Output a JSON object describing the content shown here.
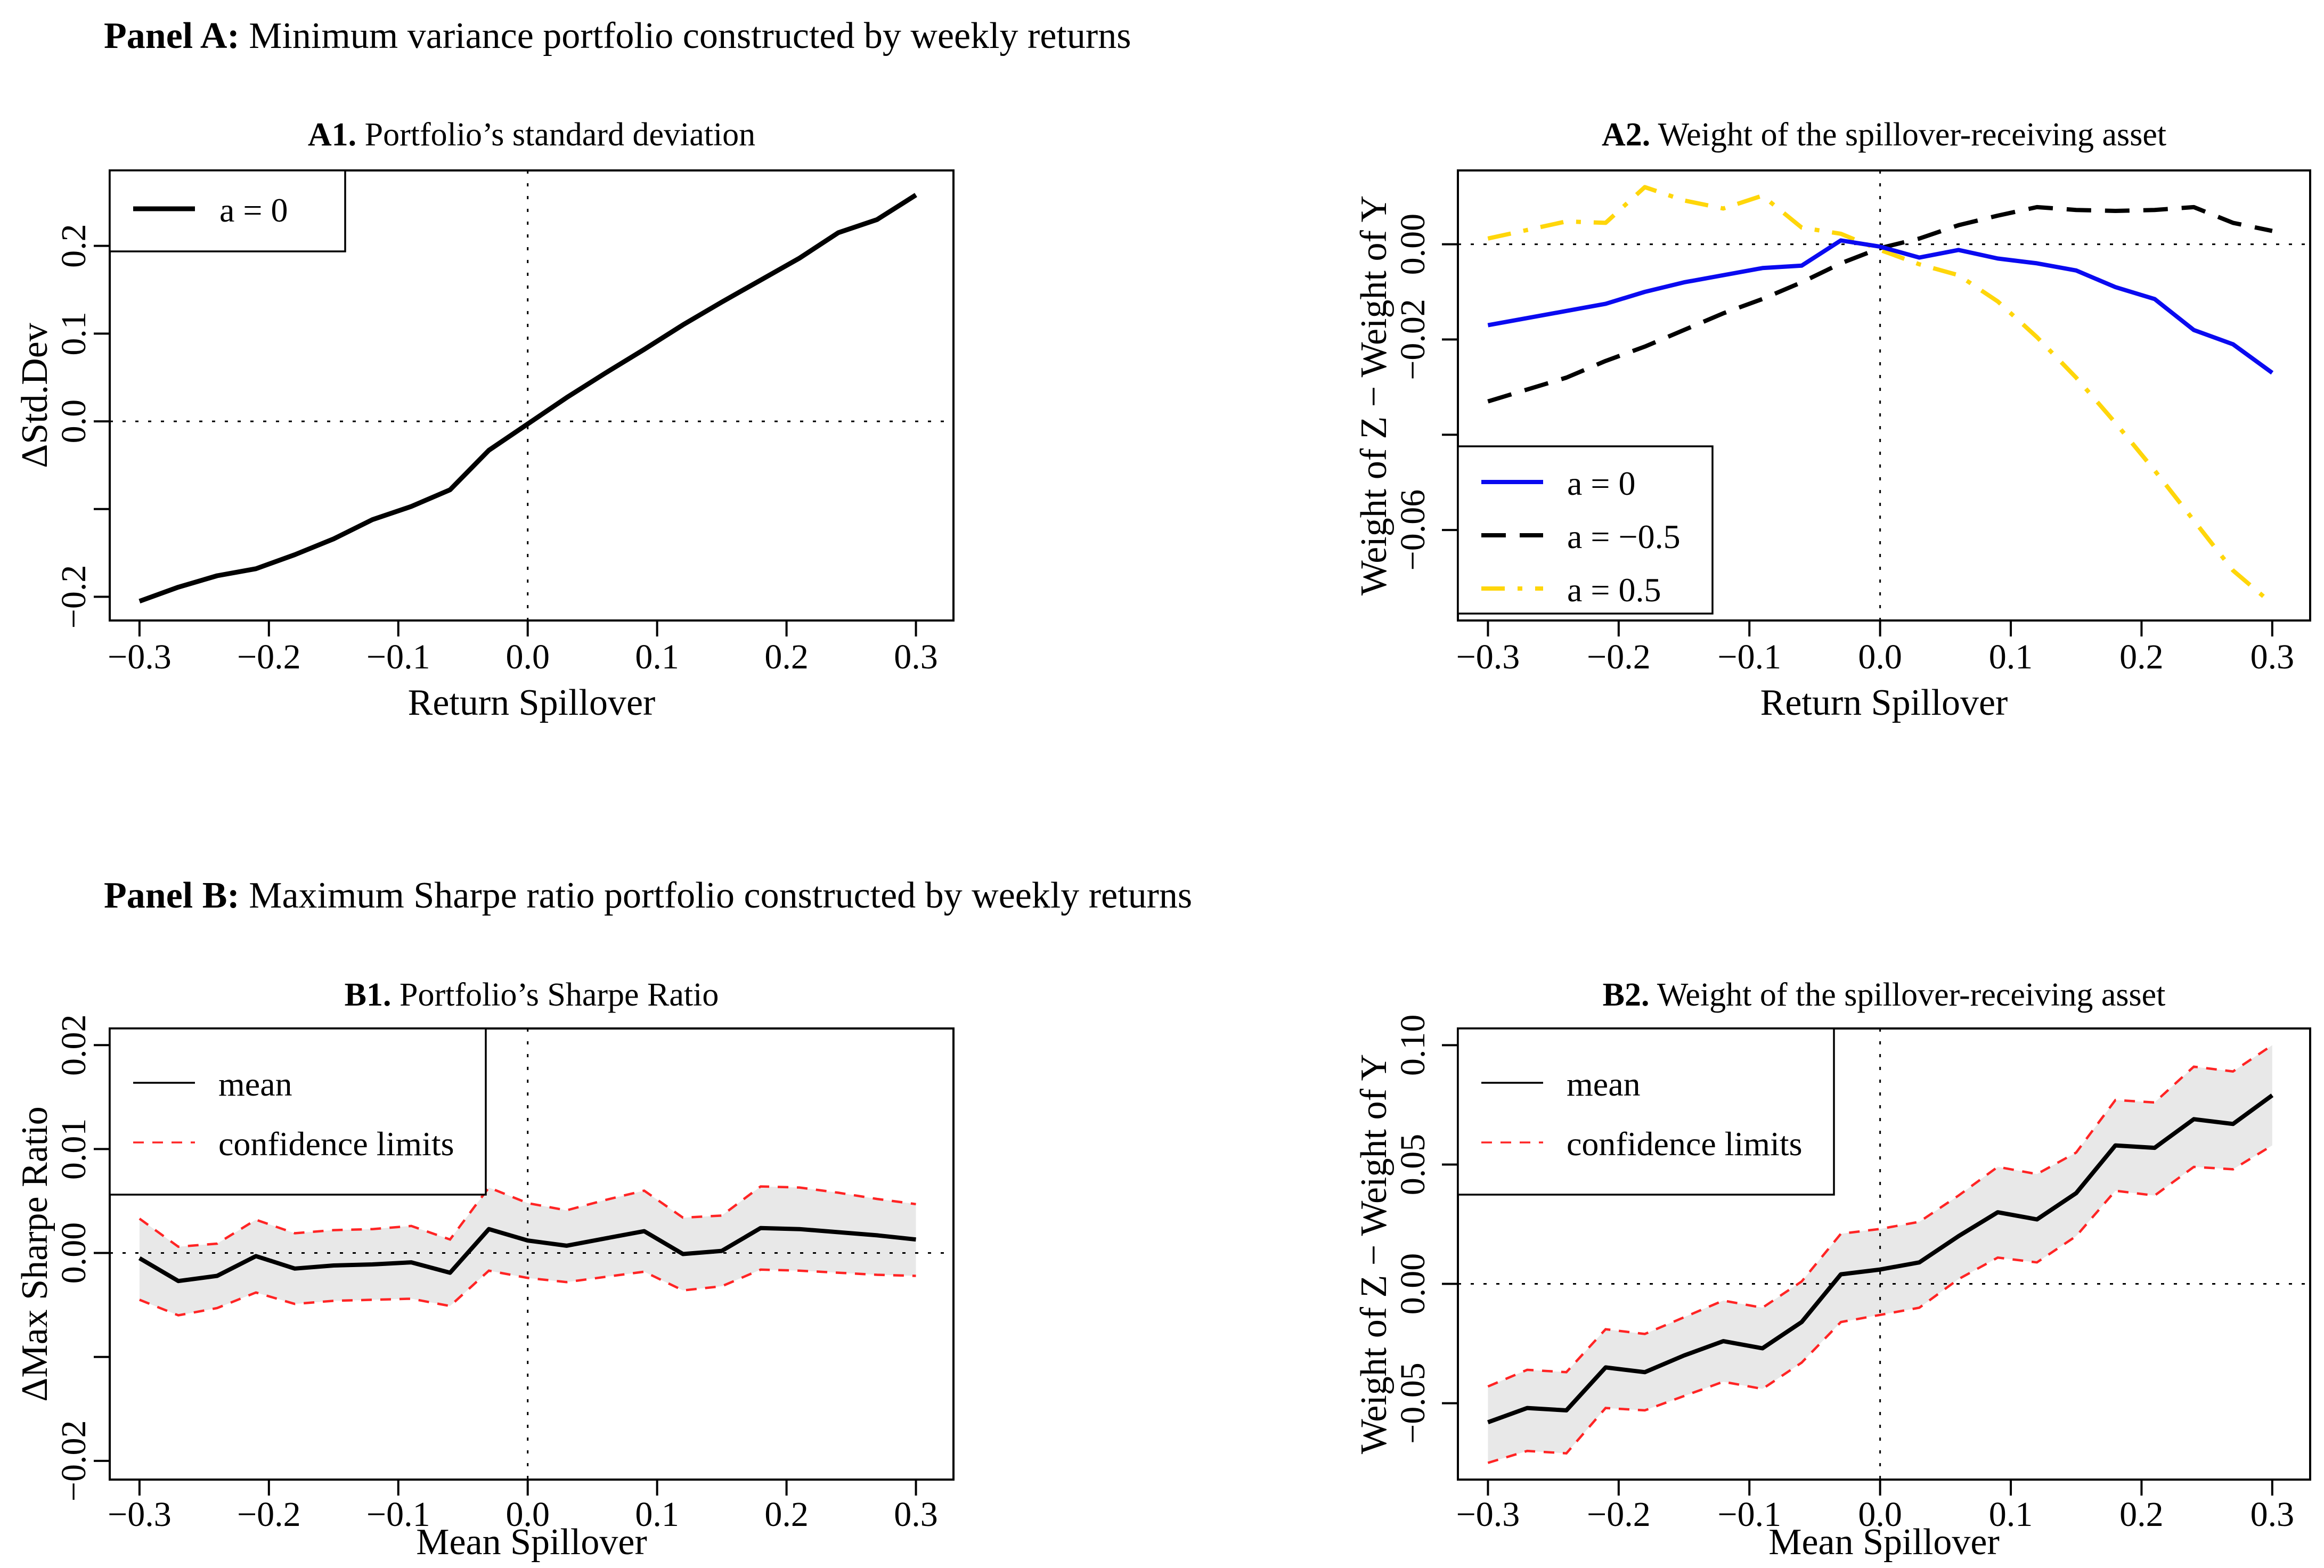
{
  "page": {
    "background": "#ffffff",
    "text_color": "#000000"
  },
  "panel_a": {
    "prefix": "Panel A:",
    "title": " Minimum variance portfolio constructed by weekly returns"
  },
  "panel_b": {
    "prefix": "Panel B:",
    "title": " Maximum Sharpe ratio portfolio constructed by weekly returns"
  },
  "colors": {
    "black": "#000000",
    "blue": "#0a0af0",
    "gold": "#ffd60a",
    "red": "#ff2424",
    "band_gray": "#e8e8e8"
  },
  "chart_data": [
    {
      "id": "a1",
      "cell": "top-left",
      "type": "line",
      "title_prefix": "A1.",
      "title": " Portfolio’s standard deviation",
      "xlabel": "Return Spillover",
      "ylabel": "ΔStd.Dev",
      "xlim": [
        -0.323,
        0.329
      ],
      "ylim": [
        -0.227,
        0.286
      ],
      "grid": {
        "x": 0,
        "y": 0
      },
      "xticks": [
        {
          "v": -0.3,
          "t": "−0.3"
        },
        {
          "v": -0.2,
          "t": "−0.2"
        },
        {
          "v": -0.1,
          "t": "−0.1"
        },
        {
          "v": 0,
          "t": "0.0"
        },
        {
          "v": 0.1,
          "t": "0.1"
        },
        {
          "v": 0.2,
          "t": "0.2"
        },
        {
          "v": 0.3,
          "t": "0.3"
        }
      ],
      "yticks": [
        {
          "v": 0.2,
          "t": "0.2"
        },
        {
          "v": 0.1,
          "t": "0.1"
        },
        {
          "v": 0,
          "t": "0.0"
        },
        {
          "v": -0.1,
          "t": ""
        },
        {
          "v": -0.2,
          "t": "−0.2"
        }
      ],
      "x": [
        -0.3,
        -0.27,
        -0.24,
        -0.21,
        -0.18,
        -0.15,
        -0.12,
        -0.09,
        -0.06,
        -0.03,
        0,
        0.03,
        0.06,
        0.09,
        0.12,
        0.15,
        0.18,
        0.21,
        0.24,
        0.27,
        0.3
      ],
      "series": [
        {
          "name": "a = 0",
          "color": "#000000",
          "dash": "solid",
          "width": 9,
          "values": [
            -0.205,
            -0.189,
            -0.176,
            -0.168,
            -0.152,
            -0.134,
            -0.112,
            -0.097,
            -0.078,
            -0.033,
            -0.003,
            0.027,
            0.055,
            0.082,
            0.11,
            0.136,
            0.161,
            0.186,
            0.215,
            0.23,
            0.258
          ]
        }
      ],
      "band": null,
      "legend": {
        "position": "top-left",
        "entries": [
          {
            "label": "a = 0",
            "color": "#000000",
            "dash": "solid",
            "width": 9
          }
        ]
      }
    },
    {
      "id": "a2",
      "cell": "top-right",
      "type": "line",
      "title_prefix": "A2.",
      "title": " Weight of the spillover-receiving asset",
      "xlabel": "Return Spillover",
      "ylabel": "Weight of Z − Weight of Y",
      "xlim": [
        -0.323,
        0.329
      ],
      "ylim": [
        -0.079,
        0.0155
      ],
      "grid": {
        "x": 0,
        "y": 0
      },
      "xticks": [
        {
          "v": -0.3,
          "t": "−0.3"
        },
        {
          "v": -0.2,
          "t": "−0.2"
        },
        {
          "v": -0.1,
          "t": "−0.1"
        },
        {
          "v": 0,
          "t": "0.0"
        },
        {
          "v": 0.1,
          "t": "0.1"
        },
        {
          "v": 0.2,
          "t": "0.2"
        },
        {
          "v": 0.3,
          "t": "0.3"
        }
      ],
      "yticks": [
        {
          "v": 0,
          "t": "0.00"
        },
        {
          "v": -0.02,
          "t": "−0.02"
        },
        {
          "v": -0.04,
          "t": ""
        },
        {
          "v": -0.06,
          "t": "−0.06"
        }
      ],
      "x": [
        -0.3,
        -0.27,
        -0.24,
        -0.21,
        -0.18,
        -0.15,
        -0.12,
        -0.09,
        -0.06,
        -0.03,
        0,
        0.03,
        0.06,
        0.09,
        0.12,
        0.15,
        0.18,
        0.21,
        0.24,
        0.27,
        0.3
      ],
      "series": [
        {
          "name": "a = −0.5",
          "color": "#000000",
          "dash": "dashed",
          "width": 8,
          "values": [
            -0.033,
            -0.0305,
            -0.028,
            -0.0245,
            -0.0215,
            -0.018,
            -0.0145,
            -0.0115,
            -0.008,
            -0.004,
            -0.0008,
            0.0012,
            0.004,
            0.006,
            0.0078,
            0.0072,
            0.007,
            0.0072,
            0.0078,
            0.0045,
            0.0028
          ]
        },
        {
          "name": "a = 0.5",
          "color": "#ffd60a",
          "dash": "dotdash",
          "width": 8,
          "values": [
            0.0012,
            0.003,
            0.0048,
            0.0045,
            0.012,
            0.0092,
            0.0075,
            0.0102,
            0.0035,
            0.0022,
            -0.0012,
            -0.0042,
            -0.0065,
            -0.012,
            -0.0195,
            -0.028,
            -0.0375,
            -0.0475,
            -0.058,
            -0.0685,
            -0.0755
          ]
        },
        {
          "name": "a = 0",
          "color": "#0a0af0",
          "dash": "solid",
          "width": 8,
          "values": [
            -0.017,
            -0.0155,
            -0.014,
            -0.0125,
            -0.01,
            -0.008,
            -0.0065,
            -0.005,
            -0.0045,
            0.0008,
            -0.0005,
            -0.0028,
            -0.0012,
            -0.003,
            -0.004,
            -0.0055,
            -0.009,
            -0.0115,
            -0.018,
            -0.021,
            -0.027
          ]
        }
      ],
      "band": null,
      "legend": {
        "position": "bottom-left",
        "entries": [
          {
            "label": "a = 0",
            "color": "#0a0af0",
            "dash": "solid",
            "width": 8
          },
          {
            "label": "a = −0.5",
            "color": "#000000",
            "dash": "dashed",
            "width": 8
          },
          {
            "label": "a = 0.5",
            "color": "#ffd60a",
            "dash": "dotdash",
            "width": 8
          }
        ]
      }
    },
    {
      "id": "b1",
      "cell": "bottom-left",
      "type": "line",
      "title_prefix": "B1.",
      "title": " Portfolio’s Sharpe Ratio",
      "xlabel": "Mean Spillover",
      "ylabel": "ΔMax Sharpe Ratio",
      "xlim": [
        -0.323,
        0.329
      ],
      "ylim": [
        -0.0218,
        0.0216
      ],
      "grid": {
        "x": 0,
        "y": 0
      },
      "xticks": [
        {
          "v": -0.3,
          "t": "−0.3"
        },
        {
          "v": -0.2,
          "t": "−0.2"
        },
        {
          "v": -0.1,
          "t": "−0.1"
        },
        {
          "v": 0,
          "t": "0.0"
        },
        {
          "v": 0.1,
          "t": "0.1"
        },
        {
          "v": 0.2,
          "t": "0.2"
        },
        {
          "v": 0.3,
          "t": "0.3"
        }
      ],
      "yticks": [
        {
          "v": 0.02,
          "t": "0.02"
        },
        {
          "v": 0.01,
          "t": "0.01"
        },
        {
          "v": 0,
          "t": "0.00"
        },
        {
          "v": -0.01,
          "t": ""
        },
        {
          "v": -0.02,
          "t": "−0.02"
        }
      ],
      "x": [
        -0.3,
        -0.27,
        -0.24,
        -0.21,
        -0.18,
        -0.15,
        -0.12,
        -0.09,
        -0.06,
        -0.03,
        0,
        0.03,
        0.06,
        0.09,
        0.12,
        0.15,
        0.18,
        0.21,
        0.24,
        0.27,
        0.3
      ],
      "series": [
        {
          "name": "mean",
          "color": "#000000",
          "dash": "solid",
          "width": 8,
          "values": [
            -0.0005,
            -0.0027,
            -0.0022,
            -0.0003,
            -0.0015,
            -0.0012,
            -0.0011,
            -0.0009,
            -0.0019,
            0.0023,
            0.0012,
            0.0007,
            0.0014,
            0.0021,
            -0.0001,
            0.0002,
            0.0024,
            0.0023,
            0.002,
            0.0017,
            0.0013
          ]
        }
      ],
      "band": {
        "fill": "#e8e8e8",
        "edge_color": "#ff2424",
        "edge_dash": "fine",
        "edge_width": 4.5,
        "upper": [
          0.0033,
          0.0006,
          0.0009,
          0.0032,
          0.0019,
          0.0022,
          0.0023,
          0.0026,
          0.0013,
          0.0063,
          0.0048,
          0.0041,
          0.0051,
          0.006,
          0.0034,
          0.0036,
          0.0064,
          0.0063,
          0.0058,
          0.0052,
          0.0047
        ],
        "lower": [
          -0.0045,
          -0.006,
          -0.0053,
          -0.0038,
          -0.0049,
          -0.0046,
          -0.0045,
          -0.0044,
          -0.0051,
          -0.0017,
          -0.0024,
          -0.0028,
          -0.0023,
          -0.0018,
          -0.0036,
          -0.0032,
          -0.0016,
          -0.0017,
          -0.0019,
          -0.0021,
          -0.0022
        ]
      },
      "legend": {
        "position": "top-left",
        "entries": [
          {
            "label": "mean",
            "color": "#000000",
            "dash": "solid",
            "width": 3.5
          },
          {
            "label": "confidence limits",
            "color": "#ff2424",
            "dash": "fine",
            "width": 3.5
          }
        ]
      }
    },
    {
      "id": "b2",
      "cell": "bottom-right",
      "type": "line",
      "title_prefix": "B2.",
      "title": " Weight of the spillover-receiving asset",
      "xlabel": "Mean Spillover",
      "ylabel": "Weight of Z − Weight of Y",
      "xlim": [
        -0.323,
        0.329
      ],
      "ylim": [
        -0.082,
        0.107
      ],
      "grid": {
        "x": 0,
        "y": 0
      },
      "xticks": [
        {
          "v": -0.3,
          "t": "−0.3"
        },
        {
          "v": -0.2,
          "t": "−0.2"
        },
        {
          "v": -0.1,
          "t": "−0.1"
        },
        {
          "v": 0,
          "t": "0.0"
        },
        {
          "v": 0.1,
          "t": "0.1"
        },
        {
          "v": 0.2,
          "t": "0.2"
        },
        {
          "v": 0.3,
          "t": "0.3"
        }
      ],
      "yticks": [
        {
          "v": 0.1,
          "t": "0.10"
        },
        {
          "v": 0.05,
          "t": "0.05"
        },
        {
          "v": 0,
          "t": "0.00"
        },
        {
          "v": -0.05,
          "t": "−0.05"
        }
      ],
      "x": [
        -0.3,
        -0.27,
        -0.24,
        -0.21,
        -0.18,
        -0.15,
        -0.12,
        -0.09,
        -0.06,
        -0.03,
        0,
        0.03,
        0.06,
        0.09,
        0.12,
        0.15,
        0.18,
        0.21,
        0.24,
        0.27,
        0.3
      ],
      "series": [
        {
          "name": "mean",
          "color": "#000000",
          "dash": "solid",
          "width": 8,
          "values": [
            -0.058,
            -0.052,
            -0.053,
            -0.035,
            -0.037,
            -0.03,
            -0.024,
            -0.027,
            -0.016,
            0.004,
            0.006,
            0.009,
            0.02,
            0.03,
            0.027,
            0.038,
            0.058,
            0.057,
            0.069,
            0.067,
            0.079
          ]
        }
      ],
      "band": {
        "fill": "#e8e8e8",
        "edge_color": "#ff2424",
        "edge_dash": "fine",
        "edge_width": 4.5,
        "upper": [
          -0.043,
          -0.036,
          -0.037,
          -0.019,
          -0.021,
          -0.014,
          -0.007,
          -0.01,
          0.001,
          0.021,
          0.023,
          0.026,
          0.037,
          0.049,
          0.046,
          0.055,
          0.077,
          0.076,
          0.091,
          0.089,
          0.1
        ],
        "lower": [
          -0.075,
          -0.07,
          -0.071,
          -0.052,
          -0.053,
          -0.047,
          -0.041,
          -0.044,
          -0.033,
          -0.016,
          -0.013,
          -0.01,
          0.002,
          0.011,
          0.009,
          0.02,
          0.039,
          0.037,
          0.049,
          0.048,
          0.058
        ]
      },
      "legend": {
        "position": "top-left",
        "entries": [
          {
            "label": "mean",
            "color": "#000000",
            "dash": "solid",
            "width": 3.5
          },
          {
            "label": "confidence limits",
            "color": "#ff2424",
            "dash": "fine",
            "width": 3.5
          }
        ]
      }
    }
  ]
}
